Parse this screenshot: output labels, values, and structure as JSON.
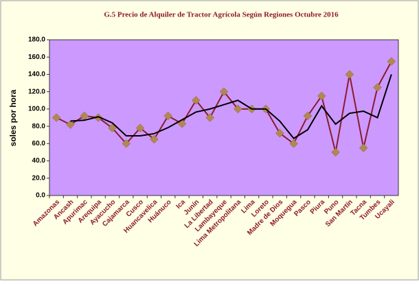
{
  "chart_data": {
    "type": "line",
    "title": "G.5   Precio de Alquiler de Tractor Agrícola Según Regiones Octubre 2016",
    "y_label": "soles por hora",
    "categories": [
      "Amazonas",
      "Ancash",
      "Apurimac",
      "Arequipa",
      "Ayacucho",
      "Cajamarca",
      "Cusco",
      "Huancavelica",
      "Huánuco",
      "Ica",
      "Junín",
      "La Libertad",
      "Lambayeque",
      "Lima Metropolitana",
      "Lima",
      "Loreto",
      "Madre de Dios",
      "Moquegua",
      "Pasco",
      "Piura",
      "Puno",
      "San Martín",
      "Tacna",
      "Tumbes",
      "Ucayali"
    ],
    "series": [
      {
        "color": "#8b1a2b",
        "marker_color": "#b08850",
        "values": [
          90,
          82,
          92,
          90,
          78,
          60,
          78,
          65,
          92,
          83,
          110,
          90,
          120,
          100,
          100,
          100,
          72,
          60,
          92,
          115,
          50,
          140,
          55,
          125,
          155
        ]
      },
      {
        "color": "#000000",
        "values": [
          null,
          86,
          87,
          91,
          84,
          69,
          69,
          71.5,
          78.5,
          87.5,
          96.5,
          100,
          105,
          110,
          100,
          100,
          86,
          66,
          76,
          103.5,
          82.5,
          95,
          97.5,
          90,
          140
        ]
      }
    ],
    "ylim": [
      0,
      180
    ],
    "yticks": [
      {
        "value": 0,
        "label": "0.0"
      },
      {
        "value": 20,
        "label": "20.0"
      },
      {
        "value": 40,
        "label": "40.0"
      },
      {
        "value": 60,
        "label": "60.0"
      },
      {
        "value": 80,
        "label": "80.0"
      },
      {
        "value": 100,
        "label": "100.0"
      },
      {
        "value": 120,
        "label": "120.0"
      },
      {
        "value": 140,
        "label": "140.0"
      },
      {
        "value": 160,
        "label": "160.0"
      },
      {
        "value": 180,
        "label": "180.0"
      }
    ],
    "plot_background": "#cc99ff"
  }
}
